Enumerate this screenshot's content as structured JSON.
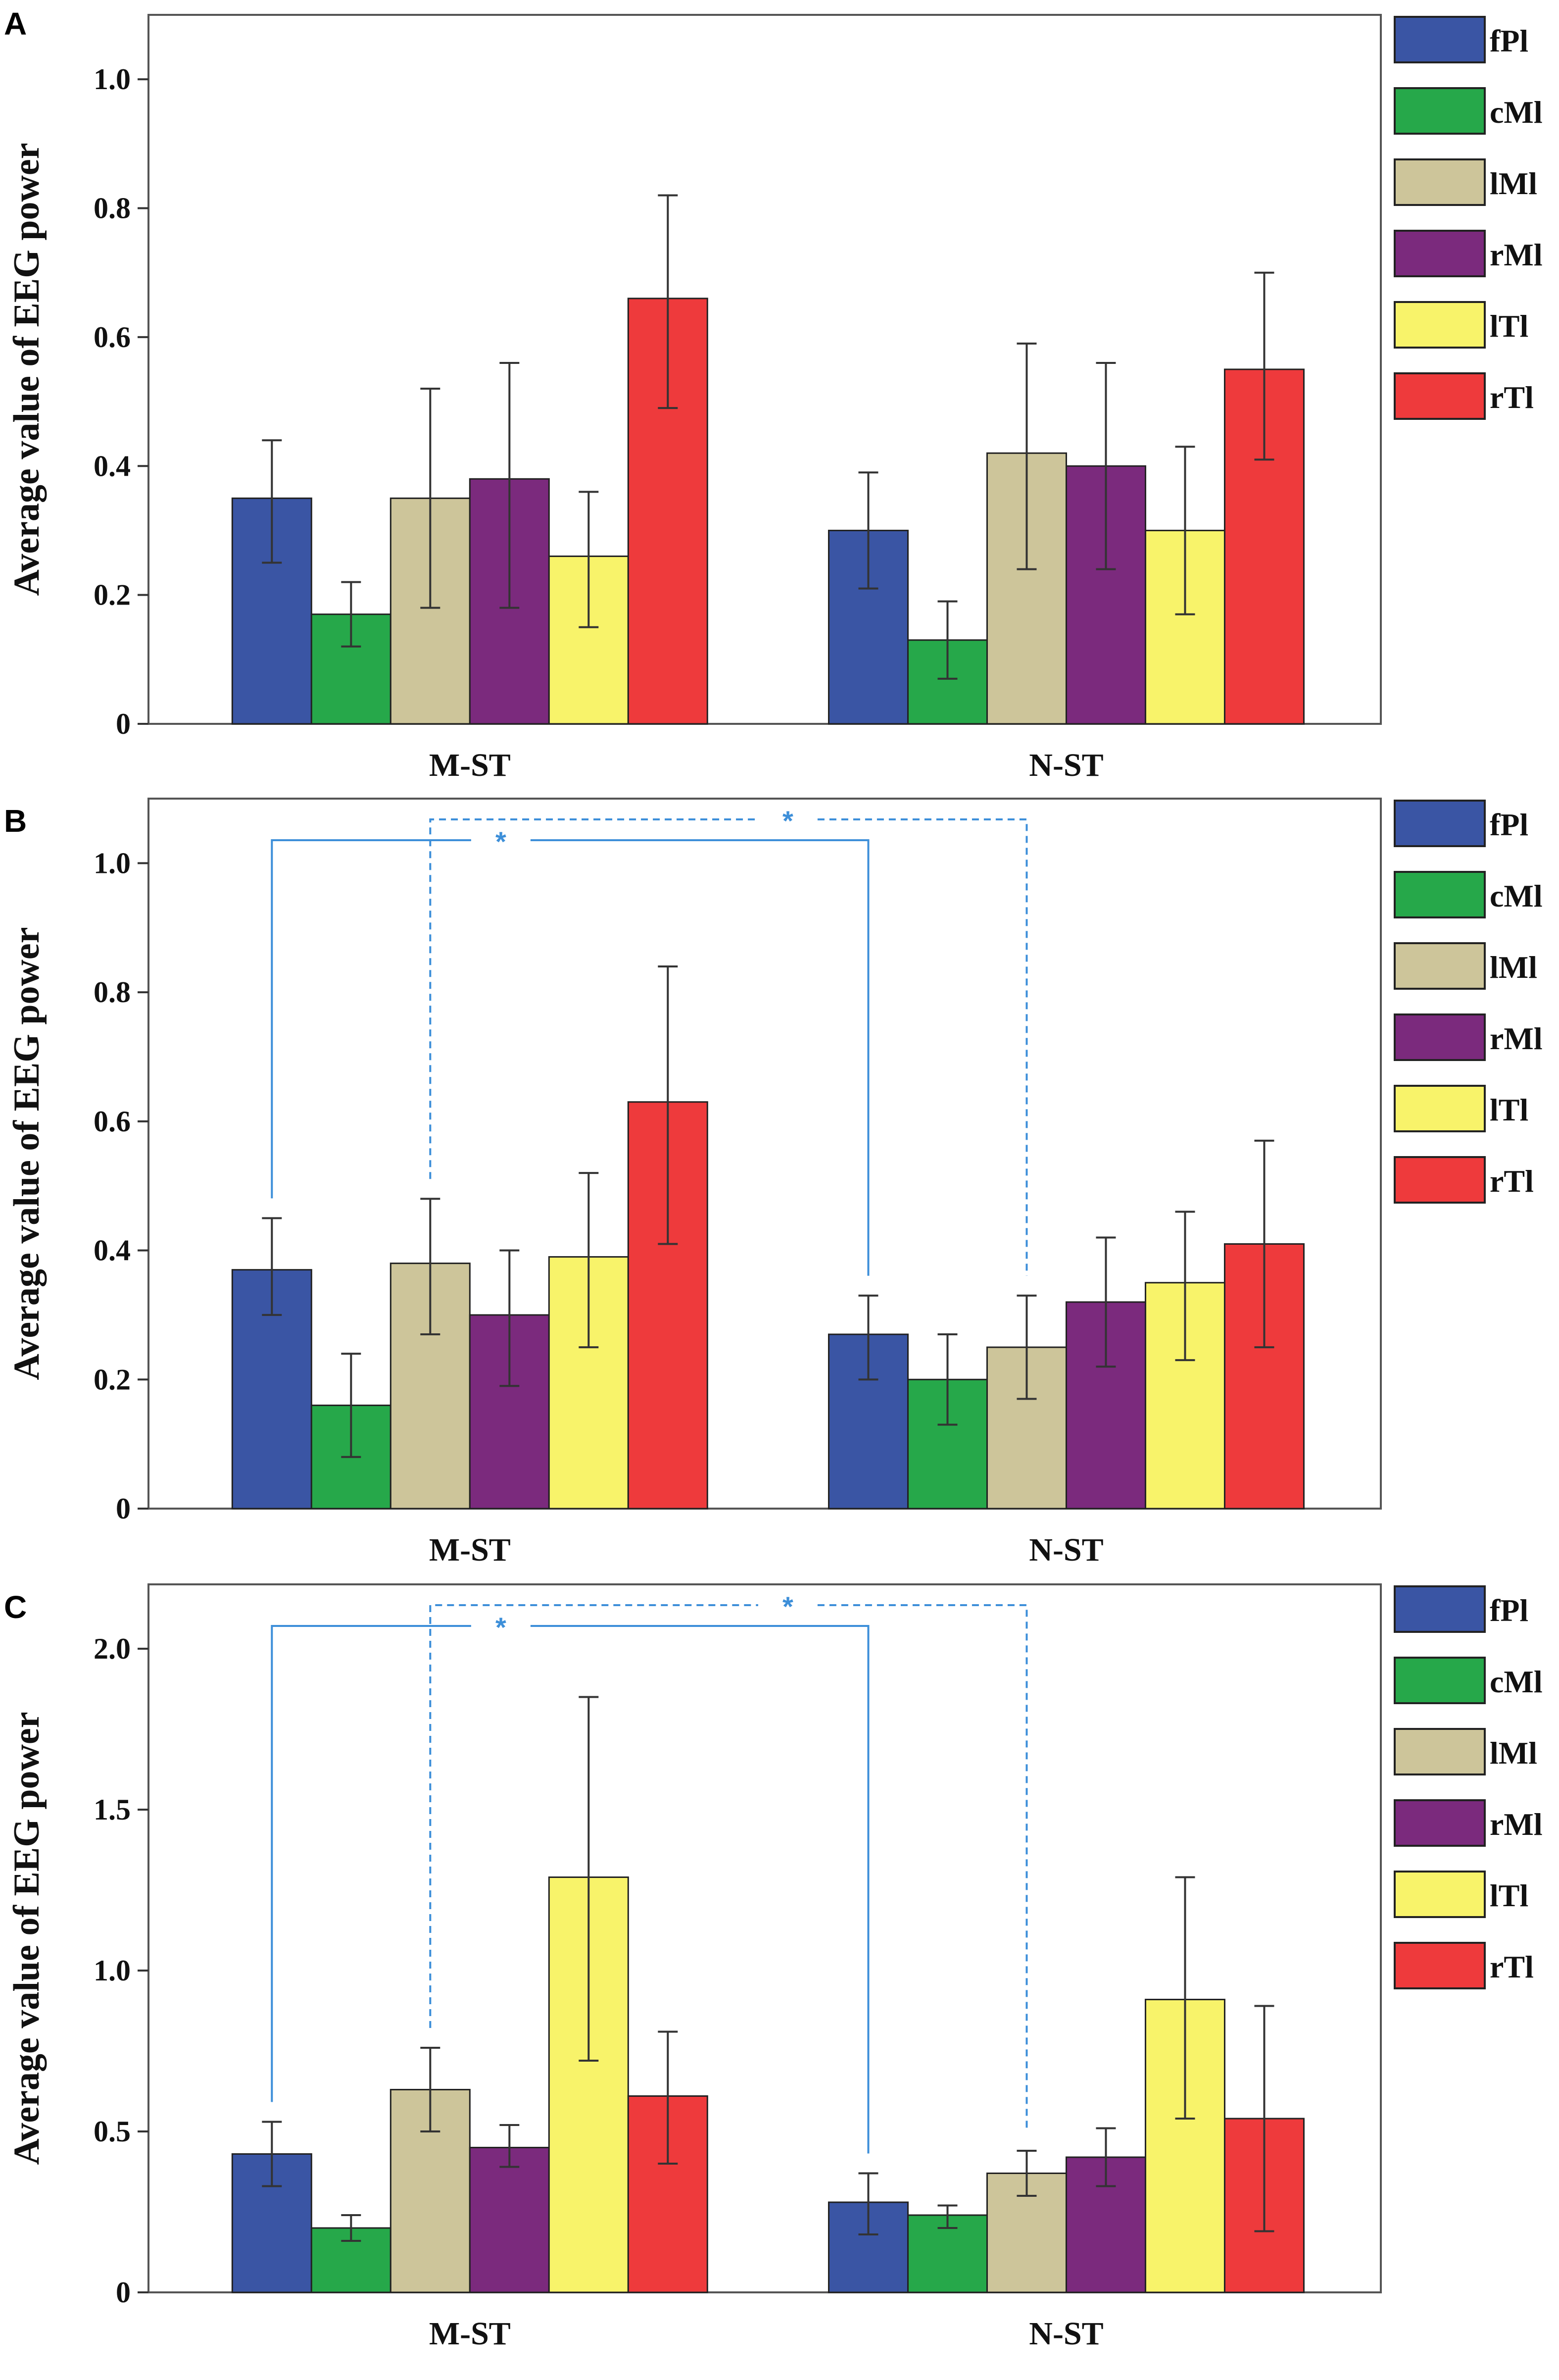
{
  "chart_data": [
    {
      "panel": "A",
      "type": "bar",
      "ylabel": "Average value of EEG power",
      "xlabel": "",
      "ylim": [
        0,
        1.1
      ],
      "yticks": [
        "0",
        "0.2",
        "0.4",
        "0.6",
        "0.8",
        "1.0"
      ],
      "ytick_values": [
        0,
        0.2,
        0.4,
        0.6,
        0.8,
        1.0
      ],
      "categories": [
        "M-ST",
        "N-ST"
      ],
      "legend_position": "right",
      "series": [
        {
          "name": "fPl",
          "color": "#3a55a4",
          "values": [
            0.35,
            0.3
          ],
          "err_low": [
            0.25,
            0.21
          ],
          "err_high": [
            0.44,
            0.39
          ]
        },
        {
          "name": "cMl",
          "color": "#26a84a",
          "values": [
            0.17,
            0.13
          ],
          "err_low": [
            0.12,
            0.07
          ],
          "err_high": [
            0.22,
            0.19
          ]
        },
        {
          "name": "lMl",
          "color": "#cdc59a",
          "values": [
            0.35,
            0.42
          ],
          "err_low": [
            0.18,
            0.24
          ],
          "err_high": [
            0.52,
            0.59
          ]
        },
        {
          "name": "rMl",
          "color": "#7b2a7d",
          "values": [
            0.38,
            0.4
          ],
          "err_low": [
            0.18,
            0.24
          ],
          "err_high": [
            0.56,
            0.56
          ]
        },
        {
          "name": "lTl",
          "color": "#f8f36a",
          "values": [
            0.26,
            0.3
          ],
          "err_low": [
            0.15,
            0.17
          ],
          "err_high": [
            0.36,
            0.43
          ]
        },
        {
          "name": "rTl",
          "color": "#ee3a3c",
          "values": [
            0.66,
            0.55
          ],
          "err_low": [
            0.49,
            0.41
          ],
          "err_high": [
            0.82,
            0.7
          ]
        }
      ],
      "significance": []
    },
    {
      "panel": "B",
      "type": "bar",
      "ylabel": "Average value of EEG power",
      "xlabel": "",
      "ylim": [
        0,
        1.1
      ],
      "yticks": [
        "0",
        "0.2",
        "0.4",
        "0.6",
        "0.8",
        "1.0"
      ],
      "ytick_values": [
        0,
        0.2,
        0.4,
        0.6,
        0.8,
        1.0
      ],
      "categories": [
        "M-ST",
        "N-ST"
      ],
      "legend_position": "right",
      "series": [
        {
          "name": "fPl",
          "color": "#3a55a4",
          "values": [
            0.37,
            0.27
          ],
          "err_low": [
            0.3,
            0.2
          ],
          "err_high": [
            0.45,
            0.33
          ]
        },
        {
          "name": "cMl",
          "color": "#26a84a",
          "values": [
            0.16,
            0.2
          ],
          "err_low": [
            0.08,
            0.13
          ],
          "err_high": [
            0.24,
            0.27
          ]
        },
        {
          "name": "lMl",
          "color": "#cdc59a",
          "values": [
            0.38,
            0.25
          ],
          "err_low": [
            0.27,
            0.17
          ],
          "err_high": [
            0.48,
            0.33
          ]
        },
        {
          "name": "rMl",
          "color": "#7b2a7d",
          "values": [
            0.3,
            0.32
          ],
          "err_low": [
            0.19,
            0.22
          ],
          "err_high": [
            0.4,
            0.42
          ]
        },
        {
          "name": "lTl",
          "color": "#f8f36a",
          "values": [
            0.39,
            0.35
          ],
          "err_low": [
            0.25,
            0.23
          ],
          "err_high": [
            0.52,
            0.46
          ]
        },
        {
          "name": "rTl",
          "color": "#ee3a3c",
          "values": [
            0.63,
            0.41
          ],
          "err_low": [
            0.41,
            0.25
          ],
          "err_high": [
            0.84,
            0.57
          ]
        }
      ],
      "significance": [
        {
          "from_category": 0,
          "from_series": 0,
          "to_category": 1,
          "to_series": 0,
          "style": "solid",
          "label": "*"
        },
        {
          "from_category": 0,
          "from_series": 2,
          "to_category": 1,
          "to_series": 2,
          "style": "dashed",
          "label": "*"
        }
      ]
    },
    {
      "panel": "C",
      "type": "bar",
      "ylabel": "Average value of EEG power",
      "xlabel": "",
      "ylim": [
        0,
        2.2
      ],
      "yticks": [
        "0",
        "0.5",
        "1.0",
        "1.5",
        "2.0"
      ],
      "ytick_values": [
        0,
        0.5,
        1.0,
        1.5,
        2.0
      ],
      "categories": [
        "M-ST",
        "N-ST"
      ],
      "legend_position": "right",
      "series": [
        {
          "name": "fPl",
          "color": "#3a55a4",
          "values": [
            0.43,
            0.28
          ],
          "err_low": [
            0.33,
            0.18
          ],
          "err_high": [
            0.53,
            0.37
          ]
        },
        {
          "name": "cMl",
          "color": "#26a84a",
          "values": [
            0.2,
            0.24
          ],
          "err_low": [
            0.16,
            0.2
          ],
          "err_high": [
            0.24,
            0.27
          ]
        },
        {
          "name": "lMl",
          "color": "#cdc59a",
          "values": [
            0.63,
            0.37
          ],
          "err_low": [
            0.5,
            0.3
          ],
          "err_high": [
            0.76,
            0.44
          ]
        },
        {
          "name": "rMl",
          "color": "#7b2a7d",
          "values": [
            0.45,
            0.42
          ],
          "err_low": [
            0.39,
            0.33
          ],
          "err_high": [
            0.52,
            0.51
          ]
        },
        {
          "name": "lTl",
          "color": "#f8f36a",
          "values": [
            1.29,
            0.91
          ],
          "err_low": [
            0.72,
            0.54
          ],
          "err_high": [
            1.85,
            1.29
          ]
        },
        {
          "name": "rTl",
          "color": "#ee3a3c",
          "values": [
            0.61,
            0.54
          ],
          "err_low": [
            0.4,
            0.19
          ],
          "err_high": [
            0.81,
            0.89
          ]
        }
      ],
      "significance": [
        {
          "from_category": 0,
          "from_series": 0,
          "to_category": 1,
          "to_series": 0,
          "style": "solid",
          "label": "*"
        },
        {
          "from_category": 0,
          "from_series": 2,
          "to_category": 1,
          "to_series": 2,
          "style": "dashed",
          "label": "*"
        }
      ]
    }
  ]
}
